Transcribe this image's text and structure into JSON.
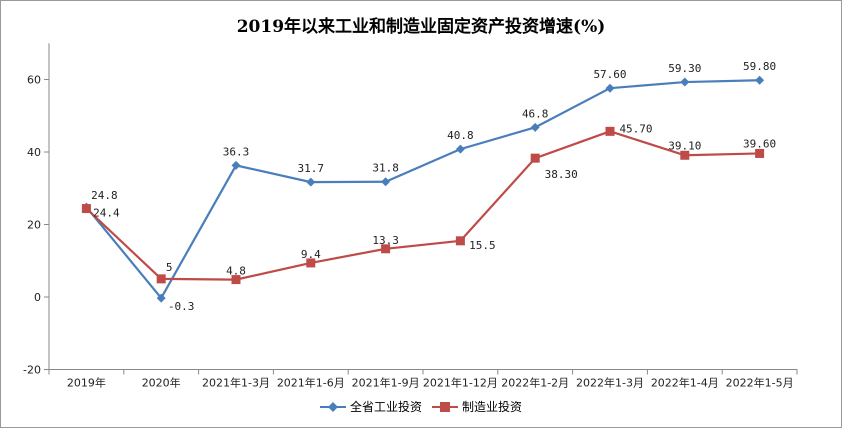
{
  "chart_data": {
    "type": "line",
    "title": "2019年以来工业和制造业固定资产投资增速(%)",
    "xlabel": "",
    "ylabel": "",
    "ylim": [
      -20,
      70
    ],
    "yticks": [
      -20,
      0,
      20,
      40,
      60
    ],
    "grid": false,
    "legend_position": "bottom",
    "categories": [
      "2019年",
      "2020年",
      "2021年1-3月",
      "2021年1-6月",
      "2021年1-9月",
      "2021年1-12月",
      "2022年1-2月",
      "2022年1-3月",
      "2022年1-4月",
      "2022年1-5月"
    ],
    "series": [
      {
        "name": "全省工业投资",
        "color": "#4a7ebb",
        "marker": "diamond",
        "values": [
          24.8,
          -0.3,
          36.3,
          31.7,
          31.8,
          40.8,
          46.8,
          57.6,
          59.3,
          59.8
        ],
        "labels": [
          "24.8",
          "-0.3",
          "36.3",
          "31.7",
          "31.8",
          "40.8",
          "46.8",
          "57.60",
          "59.30",
          "59.80"
        ]
      },
      {
        "name": "制造业投资",
        "color": "#be4b48",
        "marker": "square",
        "values": [
          24.4,
          5,
          4.8,
          9.4,
          13.3,
          15.5,
          38.3,
          45.7,
          39.1,
          39.6
        ],
        "labels": [
          "24.4",
          "5",
          "4.8",
          "9.4",
          "13.3",
          "15.5",
          "38.30",
          "45.70",
          "39.10",
          "39.60"
        ]
      }
    ]
  }
}
